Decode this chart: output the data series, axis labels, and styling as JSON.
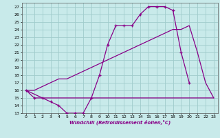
{
  "xlabel": "Windchill (Refroidissement éolien,°C)",
  "bg_color": "#c8eaea",
  "grid_color": "#a0cccc",
  "line_color": "#880088",
  "xlim": [
    -0.5,
    23.5
  ],
  "ylim": [
    13,
    27.5
  ],
  "yticks": [
    13,
    14,
    15,
    16,
    17,
    18,
    19,
    20,
    21,
    22,
    23,
    24,
    25,
    26,
    27
  ],
  "xticks": [
    0,
    1,
    2,
    3,
    4,
    5,
    6,
    7,
    8,
    9,
    10,
    11,
    12,
    13,
    14,
    15,
    16,
    17,
    18,
    19,
    20,
    21,
    22,
    23
  ],
  "line1_x": [
    0,
    1,
    2,
    3,
    4,
    5,
    6,
    7,
    8,
    9,
    10,
    11,
    12,
    13,
    14,
    15,
    16,
    17,
    18,
    19,
    20
  ],
  "line1_y": [
    16,
    15,
    15,
    14.5,
    14,
    13,
    13,
    13,
    15,
    18,
    22,
    24.5,
    24.5,
    24.5,
    26,
    27,
    27,
    27,
    26.5,
    21,
    17
  ],
  "line2_x": [
    0,
    2,
    3,
    4,
    5,
    6,
    7,
    8,
    9,
    10,
    11,
    12,
    13,
    14,
    15,
    16,
    17,
    18,
    19,
    20,
    21,
    22,
    23
  ],
  "line2_y": [
    16,
    15,
    15,
    15,
    15,
    15,
    15,
    15,
    15,
    15,
    15,
    15,
    15,
    15,
    15,
    15,
    15,
    15,
    15,
    15,
    15,
    15,
    15
  ],
  "line3_x": [
    0,
    1,
    2,
    3,
    4,
    5,
    6,
    7,
    8,
    9,
    10,
    11,
    12,
    13,
    14,
    15,
    16,
    17,
    18,
    19,
    20,
    21,
    22,
    23
  ],
  "line3_y": [
    16,
    16,
    16.5,
    17,
    17.5,
    17.5,
    18,
    18.5,
    19,
    19.5,
    20,
    20.5,
    21,
    21.5,
    22,
    22.5,
    23,
    23.5,
    24,
    24,
    24.5,
    21,
    17,
    15
  ]
}
